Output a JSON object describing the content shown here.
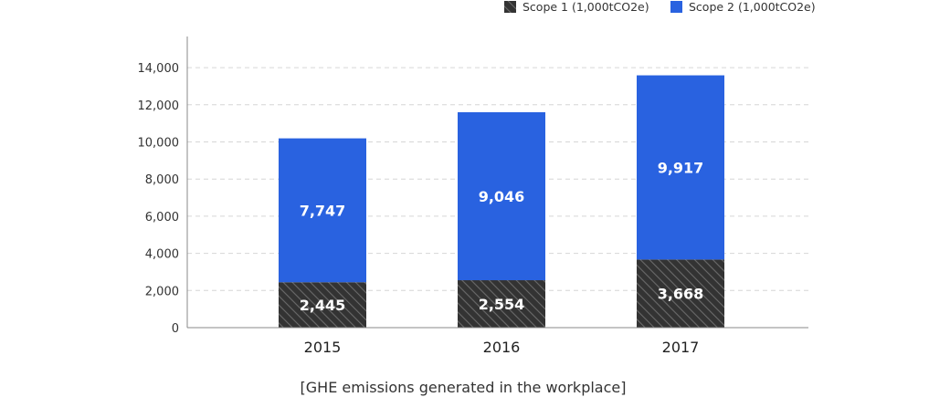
{
  "chart_data": {
    "type": "bar",
    "stacked": true,
    "title": "",
    "xlabel": "",
    "ylabel": "",
    "categories": [
      "2015",
      "2016",
      "2017"
    ],
    "ylim": [
      0,
      15000
    ],
    "yticks": [
      0,
      2000,
      4000,
      6000,
      8000,
      10000,
      12000,
      14000
    ],
    "ytick_labels": [
      "0",
      "2,000",
      "4,000",
      "6,000",
      "8,000",
      "10,000",
      "12,000",
      "14,000"
    ],
    "grid": true,
    "legend_position": "top-right",
    "series": [
      {
        "name": "Scope 1 (1,000tCO2e)",
        "values": [
          2445,
          2554,
          3668
        ],
        "labels": [
          "2,445",
          "2,554",
          "3,668"
        ],
        "color": "#3a3a3a",
        "pattern": "diagonal-hatch"
      },
      {
        "name": "Scope 2 (1,000tCO2e)",
        "values": [
          7747,
          9046,
          9917
        ],
        "labels": [
          "7,747",
          "9,046",
          "9,917"
        ],
        "color": "#2962e0"
      }
    ],
    "caption": "[GHE emissions generated in the workplace]"
  }
}
